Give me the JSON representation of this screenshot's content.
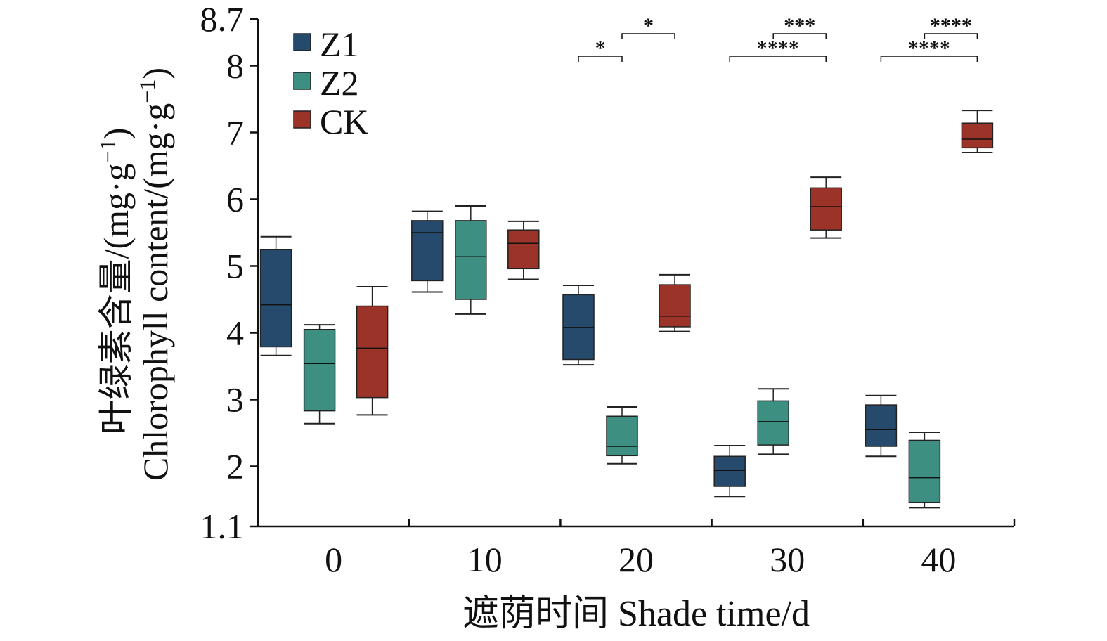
{
  "chart_data": {
    "type": "box",
    "xlabel": "遮荫时间 Shade time/d",
    "ylabel_cn": "叶绿素含量/(mg·g",
    "ylabel_en": "Chlorophyll content/(mg·g",
    "ylabel_sup": "−1",
    "ylabel_close": ")",
    "ylim": [
      1.1,
      8.7
    ],
    "yticks": [
      "1.1",
      "2",
      "3",
      "4",
      "5",
      "6",
      "7",
      "8",
      "8.7"
    ],
    "categories": [
      "0",
      "10",
      "20",
      "30",
      "40"
    ],
    "legend_position": "top-left",
    "series": [
      {
        "name": "Z1",
        "color": "#264a6b",
        "boxes": [
          {
            "min": 3.66,
            "q1": 3.79,
            "median": 4.42,
            "q3": 5.25,
            "max": 5.44
          },
          {
            "min": 4.61,
            "q1": 4.78,
            "median": 5.5,
            "q3": 5.68,
            "max": 5.82
          },
          {
            "min": 3.52,
            "q1": 3.6,
            "median": 4.08,
            "q3": 4.57,
            "max": 4.71
          },
          {
            "min": 1.55,
            "q1": 1.7,
            "median": 1.94,
            "q3": 2.15,
            "max": 2.31
          },
          {
            "min": 2.15,
            "q1": 2.3,
            "median": 2.55,
            "q3": 2.92,
            "max": 3.06
          }
        ]
      },
      {
        "name": "Z2",
        "color": "#3d9081",
        "boxes": [
          {
            "min": 2.64,
            "q1": 2.83,
            "median": 3.54,
            "q3": 4.05,
            "max": 4.12
          },
          {
            "min": 4.28,
            "q1": 4.5,
            "median": 5.14,
            "q3": 5.68,
            "max": 5.9
          },
          {
            "min": 2.04,
            "q1": 2.16,
            "median": 2.3,
            "q3": 2.75,
            "max": 2.89
          },
          {
            "min": 2.18,
            "q1": 2.32,
            "median": 2.67,
            "q3": 2.98,
            "max": 3.16
          },
          {
            "min": 1.38,
            "q1": 1.46,
            "median": 1.83,
            "q3": 2.39,
            "max": 2.51
          }
        ]
      },
      {
        "name": "CK",
        "color": "#9c3329",
        "boxes": [
          {
            "min": 2.77,
            "q1": 3.03,
            "median": 3.77,
            "q3": 4.4,
            "max": 4.69
          },
          {
            "min": 4.8,
            "q1": 4.96,
            "median": 5.34,
            "q3": 5.54,
            "max": 5.67
          },
          {
            "min": 4.02,
            "q1": 4.09,
            "median": 4.25,
            "q3": 4.72,
            "max": 4.87
          },
          {
            "min": 5.42,
            "q1": 5.54,
            "median": 5.89,
            "q3": 6.17,
            "max": 6.33
          },
          {
            "min": 6.7,
            "q1": 6.77,
            "median": 6.9,
            "q3": 7.14,
            "max": 7.33
          }
        ]
      }
    ],
    "significance": [
      {
        "group": 2,
        "from": "Z1",
        "to": "Z2",
        "label": "*"
      },
      {
        "group": 2,
        "from": "Z2",
        "to": "CK",
        "label": "*"
      },
      {
        "group": 3,
        "from": "Z1",
        "to": "CK",
        "label": "****"
      },
      {
        "group": 3,
        "from": "Z2",
        "to": "CK",
        "label": "***"
      },
      {
        "group": 4,
        "from": "Z1",
        "to": "CK",
        "label": "****"
      },
      {
        "group": 4,
        "from": "Z2",
        "to": "CK",
        "label": "****"
      }
    ]
  }
}
